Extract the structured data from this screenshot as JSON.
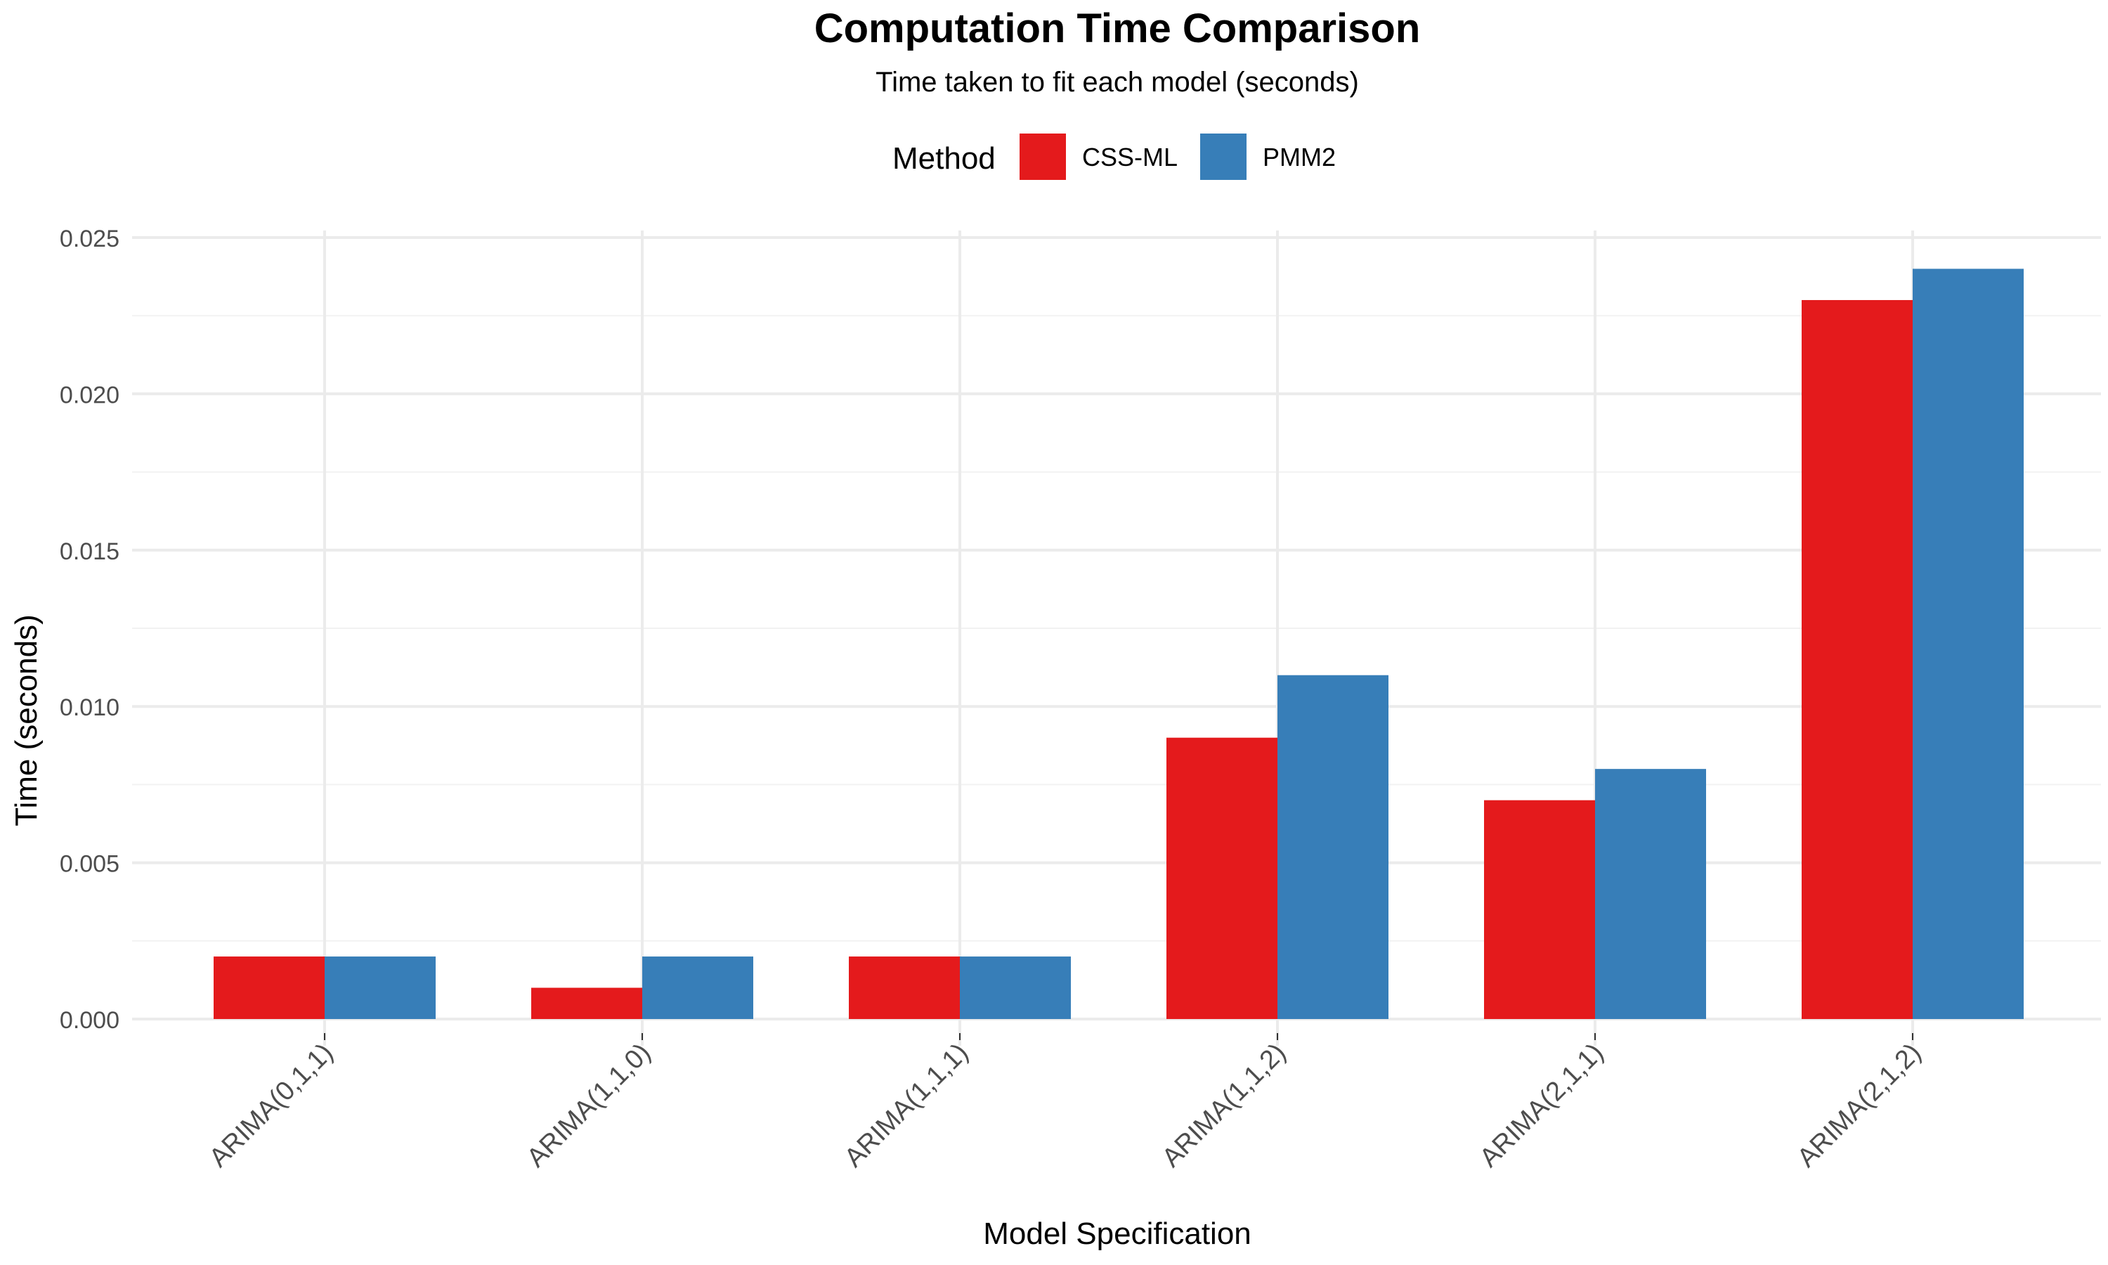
{
  "chart_data": {
    "type": "bar",
    "title": "Computation Time Comparison",
    "subtitle": "Time taken to fit each model (seconds)",
    "xlabel": "Model Specification",
    "ylabel": "Time (seconds)",
    "ylim": [
      0,
      0.025
    ],
    "yticks": [
      "0.000",
      "0.005",
      "0.010",
      "0.015",
      "0.020",
      "0.025"
    ],
    "ytick_values": [
      0,
      0.005,
      0.01,
      0.015,
      0.02,
      0.025
    ],
    "categories": [
      "ARIMA(0,1,1)",
      "ARIMA(1,1,0)",
      "ARIMA(1,1,1)",
      "ARIMA(1,1,2)",
      "ARIMA(2,1,1)",
      "ARIMA(2,1,2)"
    ],
    "legend": {
      "title": "Method",
      "position": "top"
    },
    "series": [
      {
        "name": "CSS-ML",
        "color": "#E41A1C",
        "values": [
          0.002,
          0.001,
          0.002,
          0.009,
          0.007,
          0.023
        ]
      },
      {
        "name": "PMM2",
        "color": "#377EB8",
        "values": [
          0.002,
          0.002,
          0.002,
          0.011,
          0.008,
          0.024
        ]
      }
    ],
    "grid": true
  }
}
